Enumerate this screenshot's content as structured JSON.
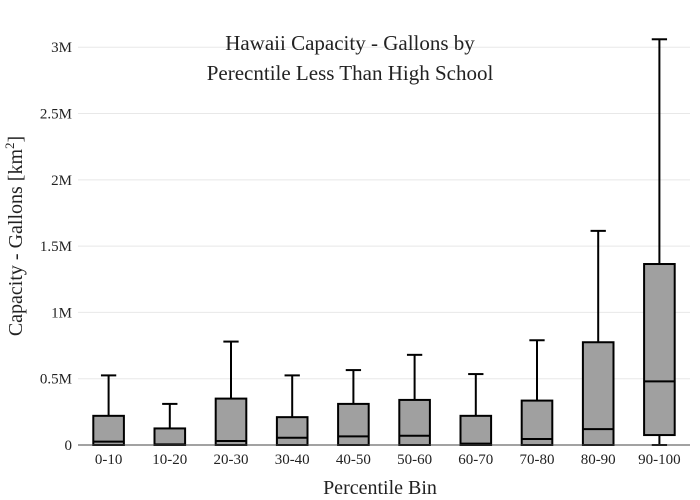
{
  "chart_data": {
    "type": "box",
    "title_lines": [
      "Hawaii Capacity - Gallons by",
      "Perecntile Less Than High School"
    ],
    "xlabel": "Percentile Bin",
    "ylabel": "Capacity - Gallons  [km",
    "ylabel_superscript": "2",
    "ylabel_suffix": "]",
    "ylim": [
      0,
      3130000
    ],
    "yticks": [
      {
        "value": 0,
        "label": "0"
      },
      {
        "value": 500000,
        "label": "0.5M"
      },
      {
        "value": 1000000,
        "label": "1M"
      },
      {
        "value": 1500000,
        "label": "1.5M"
      },
      {
        "value": 2000000,
        "label": "2M"
      },
      {
        "value": 2500000,
        "label": "2.5M"
      },
      {
        "value": 3000000,
        "label": "3M"
      }
    ],
    "grid": true,
    "box_color": "#a0a0a0",
    "line_color": "#000000",
    "categories": [
      "0-10",
      "10-20",
      "20-30",
      "30-40",
      "40-50",
      "50-60",
      "60-70",
      "70-80",
      "80-90",
      "90-100"
    ],
    "boxes": [
      {
        "category": "0-10",
        "min": 0,
        "q1": 0,
        "median": 25000,
        "q3": 220000,
        "max": 525000
      },
      {
        "category": "10-20",
        "min": 0,
        "q1": 0,
        "median": 5000,
        "q3": 125000,
        "max": 310000
      },
      {
        "category": "20-30",
        "min": 0,
        "q1": 0,
        "median": 30000,
        "q3": 350000,
        "max": 780000
      },
      {
        "category": "30-40",
        "min": 0,
        "q1": 0,
        "median": 55000,
        "q3": 210000,
        "max": 525000
      },
      {
        "category": "40-50",
        "min": 0,
        "q1": 0,
        "median": 65000,
        "q3": 310000,
        "max": 565000
      },
      {
        "category": "50-60",
        "min": 0,
        "q1": 0,
        "median": 70000,
        "q3": 340000,
        "max": 680000
      },
      {
        "category": "60-70",
        "min": 0,
        "q1": 0,
        "median": 10000,
        "q3": 220000,
        "max": 535000
      },
      {
        "category": "70-80",
        "min": 0,
        "q1": 0,
        "median": 45000,
        "q3": 335000,
        "max": 790000
      },
      {
        "category": "80-90",
        "min": 0,
        "q1": 0,
        "median": 120000,
        "q3": 775000,
        "max": 1615000
      },
      {
        "category": "90-100",
        "min": 0,
        "q1": 75000,
        "median": 480000,
        "q3": 1365000,
        "max": 3060000
      }
    ]
  }
}
